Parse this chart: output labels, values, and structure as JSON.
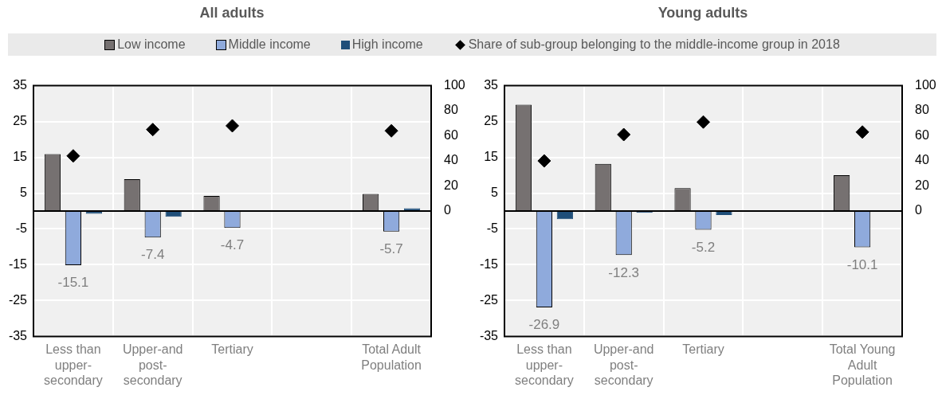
{
  "chart_data": [
    {
      "type": "bar",
      "title": "All adults",
      "categories": [
        "Less than upper-secondary",
        "Upper-and post-secondary",
        "Tertiary",
        null,
        "Total Adult Population"
      ],
      "series": [
        {
          "name": "Low income",
          "color": "#767171",
          "values": [
            15.9,
            8.9,
            4.2,
            null,
            4.8
          ]
        },
        {
          "name": "Middle income",
          "color": "#8faadc",
          "values": [
            -15.1,
            -7.4,
            -4.7,
            null,
            -5.7
          ],
          "value_labels": [
            "-15.1",
            "-7.4",
            "-4.7",
            null,
            "-5.7"
          ]
        },
        {
          "name": "High income",
          "color": "#1f4e79",
          "values": [
            -0.8,
            -1.6,
            null,
            null,
            0.8
          ]
        },
        {
          "name": "Share of sub-group belonging to the middle-income group in 2018",
          "type": "scatter",
          "axis": "y2",
          "marker": "diamond",
          "color": "#000000",
          "values": [
            44,
            65,
            68,
            null,
            64
          ]
        }
      ],
      "ylim": [
        -35,
        35
      ],
      "yticks": [
        -35,
        -25,
        -15,
        -5,
        5,
        15,
        25,
        35
      ],
      "y2lim": [
        -100,
        100
      ],
      "y2ticks": [
        0,
        20,
        40,
        60,
        80,
        100
      ],
      "grid": true,
      "legend": "top"
    },
    {
      "type": "bar",
      "title": "Young adults",
      "categories": [
        "Less than upper-secondary",
        "Upper-and post-secondary",
        "Tertiary",
        null,
        "Total Young Adult Population"
      ],
      "series": [
        {
          "name": "Low income",
          "color": "#767171",
          "values": [
            29.7,
            13.2,
            6.4,
            null,
            10.0
          ]
        },
        {
          "name": "Middle income",
          "color": "#8faadc",
          "values": [
            -26.9,
            -12.3,
            -5.2,
            null,
            -10.1
          ],
          "value_labels": [
            "-26.9",
            "-12.3",
            "-5.2",
            null,
            "-10.1"
          ]
        },
        {
          "name": "High income",
          "color": "#1f4e79",
          "values": [
            -2.3,
            -0.5,
            -1.1,
            null,
            null
          ]
        },
        {
          "name": "Share of sub-group belonging to the middle-income group in 2018",
          "type": "scatter",
          "axis": "y2",
          "marker": "diamond",
          "color": "#000000",
          "values": [
            40,
            61,
            71,
            null,
            63
          ]
        }
      ],
      "ylim": [
        -35,
        35
      ],
      "yticks": [
        -35,
        -25,
        -15,
        -5,
        5,
        15,
        25,
        35
      ],
      "y2lim": [
        -100,
        100
      ],
      "y2ticks": [
        0,
        20,
        40,
        60,
        80,
        100
      ],
      "grid": true,
      "legend": "top"
    }
  ]
}
